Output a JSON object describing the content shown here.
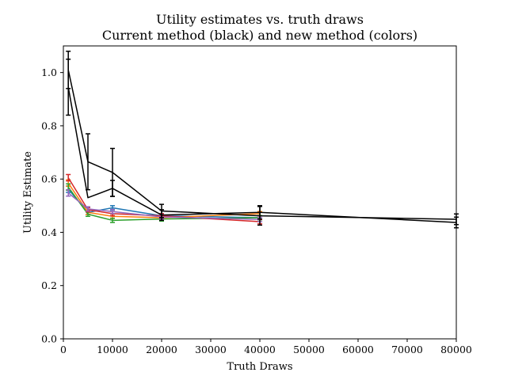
{
  "chart_data": {
    "type": "line",
    "title": "Utility estimates vs. truth draws",
    "subtitle": "Current method (black) and new method (colors)",
    "xlabel": "Truth Draws",
    "ylabel": "Utility Estimate",
    "xlim": [
      0,
      80000
    ],
    "ylim": [
      0,
      1.1
    ],
    "xticks": [
      0,
      10000,
      20000,
      30000,
      40000,
      50000,
      60000,
      70000,
      80000
    ],
    "yticks": [
      0.0,
      0.2,
      0.4,
      0.6,
      0.8,
      1.0
    ],
    "grid": false,
    "legend": "none",
    "series": [
      {
        "color": "#000000",
        "x": [
          1000,
          5000,
          10000,
          20000,
          40000,
          80000
        ],
        "y": [
          1.01,
          0.665,
          0.625,
          0.48,
          0.462,
          0.449
        ],
        "err": [
          0.07,
          0.105,
          0.09,
          0.025,
          0.035,
          0.02
        ]
      },
      {
        "color": "#000000",
        "x": [
          1000,
          5000,
          10000,
          20000,
          40000,
          80000
        ],
        "y": [
          0.945,
          0.53,
          0.565,
          0.465,
          0.475,
          0.437
        ],
        "err": [
          0.105,
          0.0,
          0.03,
          0.02,
          0.025,
          0.02
        ]
      },
      {
        "color": "#1f77b4",
        "x": [
          1000,
          5000,
          10000,
          20000,
          40000
        ],
        "y": [
          0.562,
          0.475,
          0.492,
          0.462,
          0.455
        ],
        "err": [
          0.012,
          0.008,
          0.008,
          0.008,
          0.008
        ]
      },
      {
        "color": "#ff7f0e",
        "x": [
          1000,
          5000,
          10000,
          20000,
          40000
        ],
        "y": [
          0.585,
          0.475,
          0.46,
          0.455,
          0.47
        ],
        "err": [
          0.012,
          0.008,
          0.008,
          0.008,
          0.008
        ]
      },
      {
        "color": "#2ca02c",
        "x": [
          1000,
          5000,
          10000,
          20000,
          40000
        ],
        "y": [
          0.57,
          0.468,
          0.445,
          0.45,
          0.455
        ],
        "err": [
          0.012,
          0.008,
          0.008,
          0.008,
          0.008
        ]
      },
      {
        "color": "#d62728",
        "x": [
          1000,
          5000,
          10000,
          20000,
          40000
        ],
        "y": [
          0.605,
          0.485,
          0.47,
          0.462,
          0.44
        ],
        "err": [
          0.012,
          0.008,
          0.008,
          0.008,
          0.008
        ]
      },
      {
        "color": "#9467bd",
        "x": [
          1000,
          5000,
          10000,
          20000,
          40000
        ],
        "y": [
          0.548,
          0.488,
          0.478,
          0.458,
          0.448
        ],
        "err": [
          0.012,
          0.008,
          0.008,
          0.008,
          0.008
        ]
      }
    ]
  }
}
